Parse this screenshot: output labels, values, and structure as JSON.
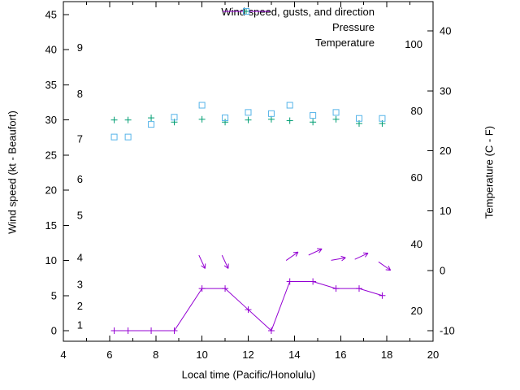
{
  "chart_data": {
    "type": "line",
    "title": "",
    "xlabel": "Local time (Pacific/Honolulu)",
    "ylabel_left": "Wind speed (kt - Beaufort)",
    "ylabel_right": "Temperature (C - F)",
    "background": "#ffffff",
    "axis_color": "#000000",
    "x_range": [
      4,
      20
    ],
    "x_major_ticks": [
      4,
      6,
      8,
      10,
      12,
      14,
      16,
      18,
      20
    ],
    "x_minor_ticks": [
      5,
      7,
      9,
      11,
      13,
      15,
      17,
      19
    ],
    "left_axis": {
      "units": "kt",
      "ticks": [
        0,
        5,
        10,
        15,
        20,
        25,
        30,
        35,
        40,
        45
      ],
      "range": [
        -1.5,
        46.9
      ]
    },
    "right_axis": {
      "units": "C",
      "ticks": [
        -10,
        0,
        10,
        20,
        30,
        40
      ],
      "range": [
        -11.8,
        44.9
      ]
    },
    "beaufort_labels": [
      {
        "label": "1",
        "kt": 0.8
      },
      {
        "label": "2",
        "kt": 3.5
      },
      {
        "label": "3",
        "kt": 6.6
      },
      {
        "label": "4",
        "kt": 10.4
      },
      {
        "label": "5",
        "kt": 16.4
      },
      {
        "label": "6",
        "kt": 21.6
      },
      {
        "label": "7",
        "kt": 27.3
      },
      {
        "label": "8",
        "kt": 33.7
      },
      {
        "label": "9",
        "kt": 40.3
      }
    ],
    "fahrenheit_labels": [
      {
        "label": "20",
        "c": -6.67
      },
      {
        "label": "40",
        "c": 4.44
      },
      {
        "label": "60",
        "c": 15.56
      },
      {
        "label": "80",
        "c": 26.67
      },
      {
        "label": "100",
        "c": 37.78
      }
    ],
    "x": [
      6.2,
      6.8,
      7.8,
      8.8,
      10,
      11,
      12,
      13,
      13.8,
      14.8,
      15.8,
      16.8,
      17.8
    ],
    "series": [
      {
        "name": "Wind speed, gusts, and direction",
        "color": "#9400d3",
        "marker": "plus",
        "style": "linespoints",
        "axis": "left",
        "values": [
          0,
          0,
          0,
          0,
          6,
          6,
          3,
          0,
          7,
          7,
          6,
          6,
          5
        ]
      },
      {
        "name": "Pressure",
        "color": "#009e73",
        "marker": "plus",
        "style": "points",
        "axis": "left",
        "values": [
          30.0,
          30.0,
          30.3,
          29.7,
          30.1,
          29.7,
          30.0,
          30.1,
          29.9,
          29.7,
          30.1,
          29.5,
          29.5
        ]
      },
      {
        "name": "Temperature",
        "color": "#56b4e9",
        "marker": "square",
        "style": "points",
        "axis": "right",
        "values": [
          22.3,
          22.3,
          24.4,
          25.6,
          27.6,
          25.5,
          26.4,
          26.2,
          27.6,
          25.9,
          26.4,
          25.4,
          25.4
        ]
      }
    ],
    "wind_direction_arrows": [
      {
        "x": 10,
        "kt": 9.8,
        "angle_deg": -65
      },
      {
        "x": 11,
        "kt": 9.8,
        "angle_deg": -65
      },
      {
        "x": 13.9,
        "kt": 10.6,
        "angle_deg": 35
      },
      {
        "x": 14.9,
        "kt": 11.2,
        "angle_deg": 25
      },
      {
        "x": 15.9,
        "kt": 10.2,
        "angle_deg": 10
      },
      {
        "x": 16.9,
        "kt": 10.6,
        "angle_deg": 25
      },
      {
        "x": 17.9,
        "kt": 9.2,
        "angle_deg": -35
      }
    ]
  }
}
